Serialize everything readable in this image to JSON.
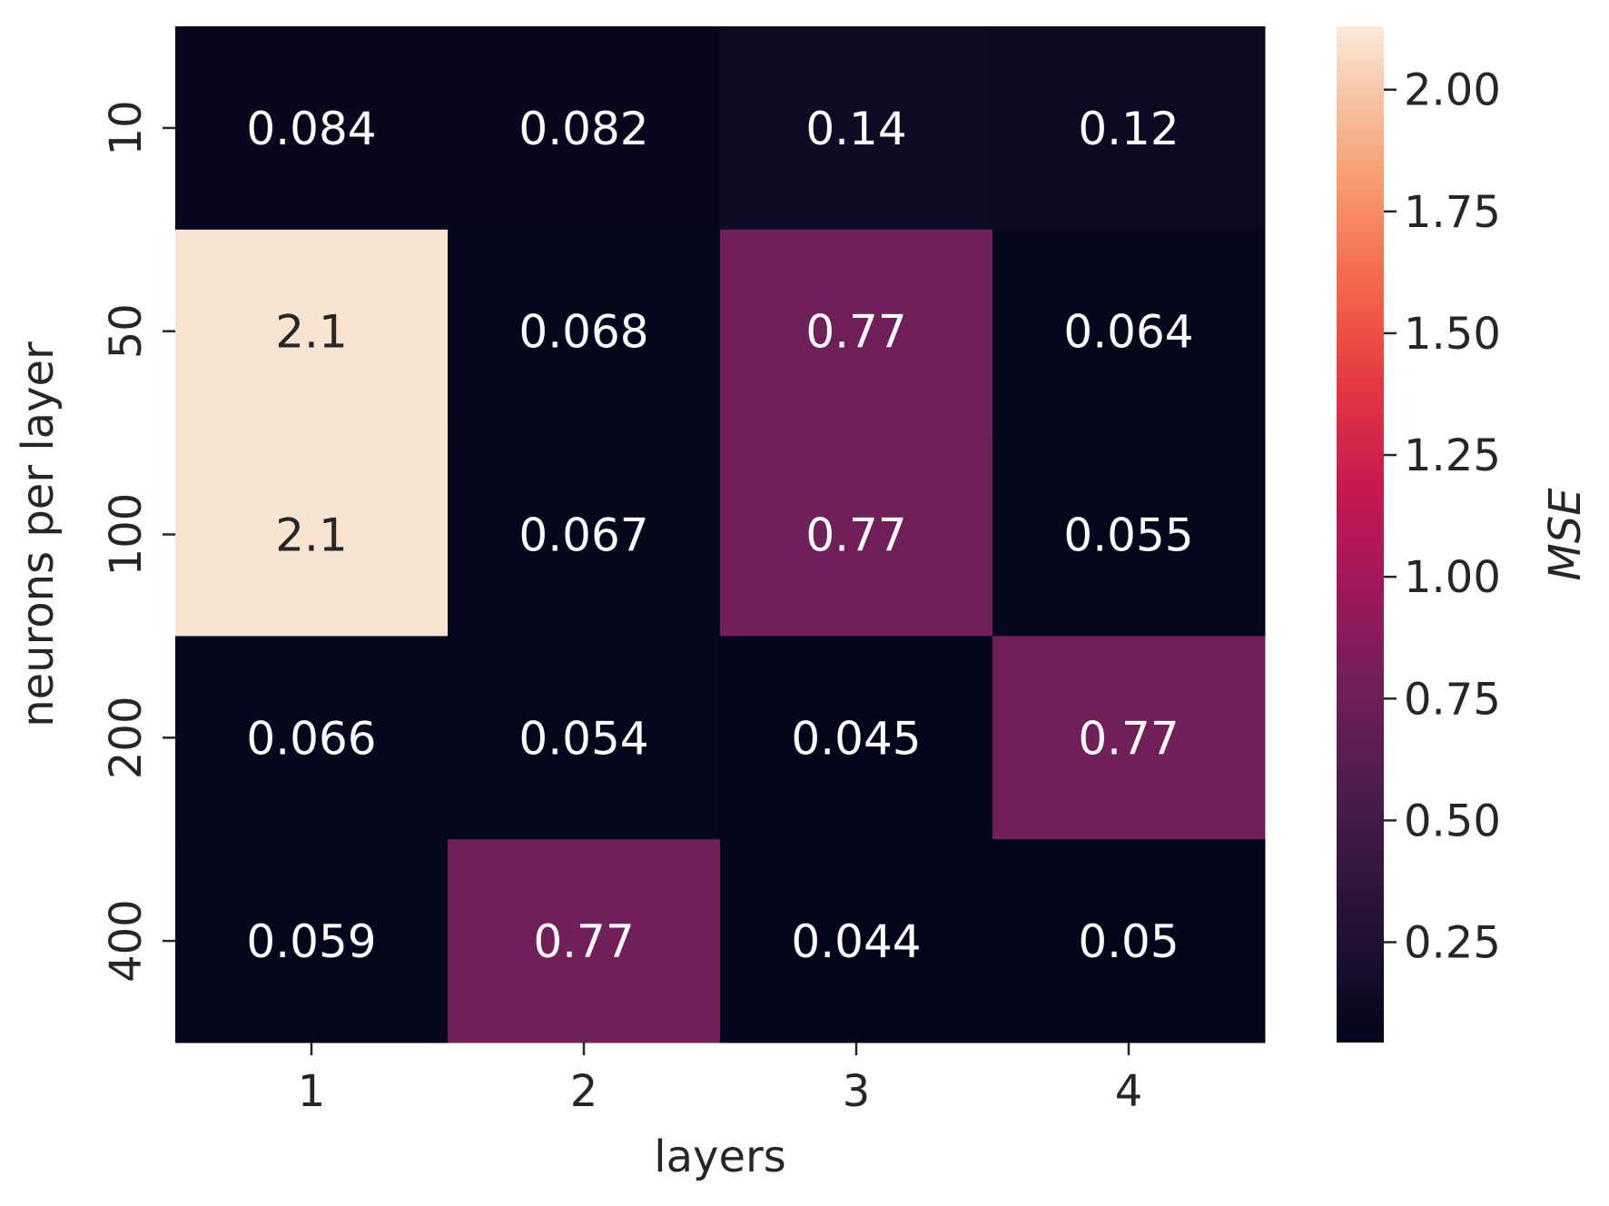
{
  "chart_data": {
    "type": "heatmap",
    "xlabel": "layers",
    "ylabel": "neurons per layer",
    "x_categories": [
      "1",
      "2",
      "3",
      "4"
    ],
    "y_categories": [
      "10",
      "50",
      "100",
      "200",
      "400"
    ],
    "values": [
      [
        0.084,
        0.082,
        0.14,
        0.12
      ],
      [
        2.1,
        0.068,
        0.77,
        0.064
      ],
      [
        2.1,
        0.067,
        0.77,
        0.055
      ],
      [
        0.066,
        0.054,
        0.045,
        0.77
      ],
      [
        0.059,
        0.77,
        0.044,
        0.05
      ]
    ],
    "annotations": [
      [
        "0.084",
        "0.082",
        "0.14",
        "0.12"
      ],
      [
        "2.1",
        "0.068",
        "0.77",
        "0.064"
      ],
      [
        "2.1",
        "0.067",
        "0.77",
        "0.055"
      ],
      [
        "0.066",
        "0.054",
        "0.045",
        "0.77"
      ],
      [
        "0.059",
        "0.77",
        "0.044",
        "0.05"
      ]
    ],
    "colorbar": {
      "label": "MSE",
      "range": [
        0.044,
        2.13
      ],
      "ticks": [
        0.25,
        0.5,
        0.75,
        1.0,
        1.25,
        1.5,
        1.75,
        2.0
      ],
      "tick_labels": [
        "0.25",
        "0.50",
        "0.75",
        "1.00",
        "1.25",
        "1.50",
        "1.75",
        "2.00"
      ],
      "colormap": "rocket"
    },
    "grid": false
  }
}
